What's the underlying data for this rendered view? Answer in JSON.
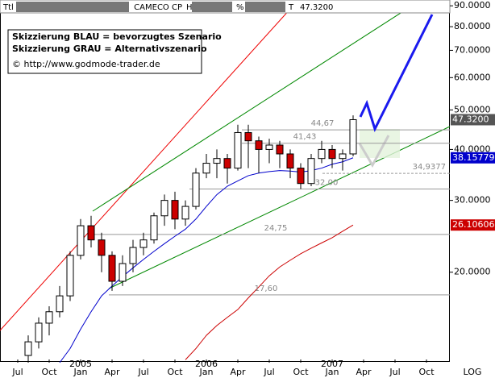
{
  "header": {
    "ttl": "Ttl",
    "symbol": "CAMECO CP",
    "h": "H",
    "pct": "%",
    "t": "T",
    "price": "47.3200"
  },
  "annotations": [
    "Skizzierung BLAU = bevorzugtes Szenario",
    "Skizzierung GRAU = Alternativszenario",
    "© http://www.godmode-trader.de"
  ],
  "chart_data": {
    "type": "candlestick",
    "log_scale": true,
    "scale_label": "LOG",
    "categories": [
      "Jul",
      null,
      null,
      "Oct",
      null,
      null,
      "Jan",
      null,
      null,
      "Apr",
      null,
      null,
      "Jul",
      null,
      null,
      "Oct",
      null,
      null,
      "Jan",
      null,
      null,
      "Apr",
      null,
      null,
      "Jul",
      null,
      null,
      "Oct",
      null,
      null,
      "Jan",
      null,
      null,
      "Apr",
      null,
      null,
      "Jul",
      null,
      null,
      "Oct"
    ],
    "year_labels": [
      "2005",
      "2006",
      "2007"
    ],
    "ylim": [
      12,
      93
    ],
    "yticks": [
      {
        "value": 90,
        "label": "90.0000"
      },
      {
        "value": 80,
        "label": "80.0000"
      },
      {
        "value": 70,
        "label": "70.0000"
      },
      {
        "value": 60,
        "label": "60.0000"
      },
      {
        "value": 50,
        "label": "50.0000"
      },
      {
        "value": 40,
        "label": "40.0000"
      },
      {
        "value": 30,
        "label": "30.0000"
      },
      {
        "value": 20,
        "label": "20.0000"
      }
    ],
    "open": [
      null,
      12.5,
      13.5,
      15,
      16,
      17.5,
      22,
      26,
      24,
      22,
      19,
      21,
      23,
      24,
      27.5,
      30,
      27,
      29,
      35,
      37,
      38,
      36,
      44,
      42,
      40,
      41,
      39,
      36,
      33,
      38,
      40,
      38,
      39,
      null,
      null,
      null,
      null,
      null,
      null,
      null
    ],
    "high": [
      null,
      14,
      15.5,
      16.5,
      18.5,
      22.5,
      27,
      27.5,
      25,
      22.5,
      22,
      24,
      25,
      28,
      31,
      31.5,
      30,
      36,
      39,
      40,
      39,
      46,
      46,
      43,
      42.5,
      42,
      40,
      37,
      39,
      42,
      41,
      40,
      48.5,
      null,
      null,
      null,
      null,
      null,
      null,
      null
    ],
    "low": [
      null,
      12,
      13,
      14,
      15.5,
      17,
      21.5,
      23,
      20,
      18,
      18.5,
      20,
      22,
      23.5,
      26,
      25.5,
      26,
      28.5,
      34,
      34,
      33,
      35.5,
      36,
      35,
      37,
      36,
      34,
      32,
      32.5,
      37,
      36,
      35.5,
      38.5,
      null,
      null,
      null,
      null,
      null,
      null,
      null
    ],
    "close": [
      null,
      13.5,
      15,
      16,
      17.5,
      22,
      26,
      24,
      22,
      19,
      21,
      23,
      24,
      27.5,
      30,
      27,
      29,
      35,
      37,
      38,
      36,
      44,
      42,
      40,
      41,
      39,
      36,
      33,
      38,
      40,
      38,
      39,
      47.32,
      null,
      null,
      null,
      null,
      null,
      null,
      null
    ],
    "up_color": "#ffffff",
    "down_color": "#cc0000",
    "price_label": {
      "value": 47.32,
      "label": "47.3200",
      "color": "#555555"
    },
    "series": [
      {
        "name": "MA blue",
        "color": "#0000cc",
        "value_label": "38.15779",
        "values": [
          null,
          null,
          null,
          null,
          12,
          13,
          14.5,
          16,
          17.5,
          18.5,
          19.5,
          20.5,
          21.5,
          22.5,
          23.5,
          24.5,
          25.5,
          27,
          29,
          31,
          32.5,
          33.5,
          34.5,
          35,
          35.3,
          35.5,
          35.4,
          35.2,
          35.5,
          36,
          36.8,
          37.3,
          38.15779,
          null,
          null,
          null,
          null,
          null,
          null,
          null
        ]
      },
      {
        "name": "MA red",
        "color": "#cc0000",
        "value_label": "26.10606",
        "values": [
          null,
          null,
          null,
          null,
          null,
          null,
          null,
          null,
          null,
          null,
          null,
          null,
          null,
          null,
          null,
          null,
          12.2,
          13,
          14,
          14.8,
          15.5,
          16.2,
          17.3,
          18.4,
          19.6,
          20.6,
          21.4,
          22.2,
          22.9,
          23.6,
          24.3,
          25.2,
          26.10606,
          null,
          null,
          null,
          null,
          null,
          null,
          null
        ]
      }
    ],
    "levels": [
      {
        "value": 44.67,
        "label": "44,67"
      },
      {
        "value": 41.43,
        "label": "41,43"
      },
      {
        "value": 34.9377,
        "label": "34,9377",
        "dashed": true
      },
      {
        "value": 32,
        "label": "32,00"
      },
      {
        "value": 24.75,
        "label": "24,75"
      },
      {
        "value": 17.6,
        "label": "17,60"
      }
    ]
  }
}
